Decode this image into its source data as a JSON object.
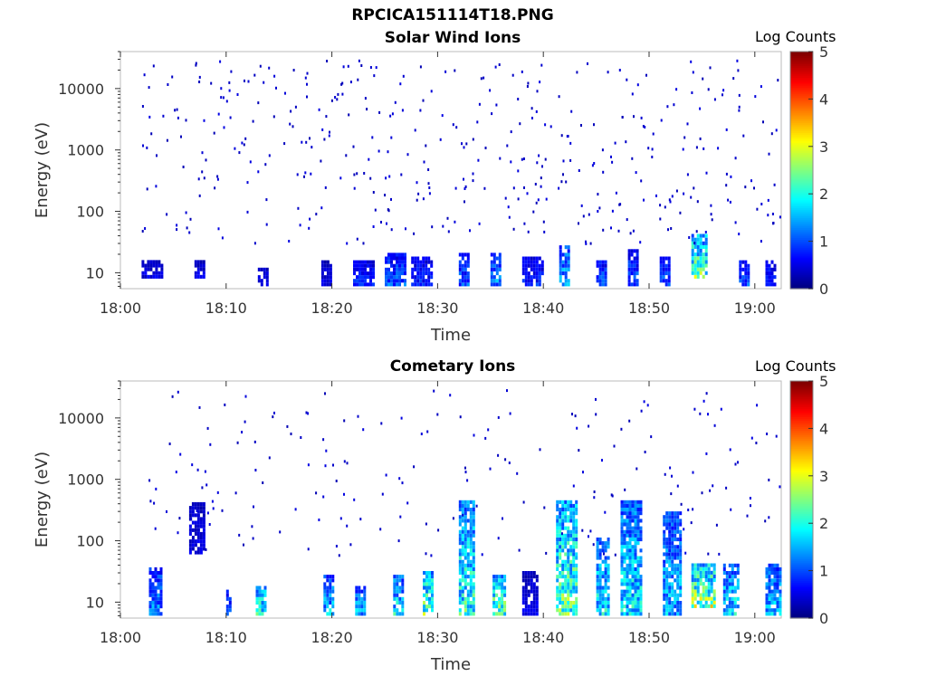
{
  "window": {
    "title": "RPCICA151114T18.PNG"
  },
  "colorbar": {
    "label": "Log Counts",
    "ticks": [
      "0",
      "1",
      "2",
      "3",
      "4",
      "5"
    ],
    "colormap": "jet",
    "range": [
      0,
      5
    ]
  },
  "chart_data": [
    {
      "type": "heatmap",
      "title": "Solar Wind Ions",
      "xlabel": "Time",
      "ylabel": "Energy (eV)",
      "xticks": [
        "18:00",
        "18:10",
        "18:20",
        "18:30",
        "18:40",
        "18:50",
        "19:00"
      ],
      "yticks": [
        "10",
        "100",
        "1000",
        "10000"
      ],
      "yscale": "log",
      "ylim": [
        5.5,
        40000
      ],
      "xlim_minutes": [
        0,
        62.5
      ],
      "colorbar_label": "Log Counts",
      "colorbar_range": [
        0,
        5
      ],
      "regions": [
        {
          "t": [
            2,
            4
          ],
          "e": [
            8,
            15
          ],
          "level": 0.1
        },
        {
          "t": [
            7,
            8
          ],
          "e": [
            8,
            15
          ],
          "level": 0.1
        },
        {
          "t": [
            13,
            14
          ],
          "e": [
            6,
            12
          ],
          "level": 0.1
        },
        {
          "t": [
            19,
            20
          ],
          "e": [
            6,
            15
          ],
          "level": 0.1
        },
        {
          "t": [
            22,
            24
          ],
          "e": [
            6,
            15
          ],
          "level": 0.15
        },
        {
          "t": [
            25,
            27
          ],
          "e": [
            6,
            20
          ],
          "level": 0.2
        },
        {
          "t": [
            27.5,
            29.5
          ],
          "e": [
            6,
            18
          ],
          "level": 0.15
        },
        {
          "t": [
            32,
            33
          ],
          "e": [
            6,
            20
          ],
          "level": 0.2
        },
        {
          "t": [
            35,
            36
          ],
          "e": [
            6,
            20
          ],
          "level": 0.25
        },
        {
          "t": [
            38,
            40
          ],
          "e": [
            6,
            18
          ],
          "level": 0.15
        },
        {
          "t": [
            41.5,
            42.5
          ],
          "e": [
            6,
            25
          ],
          "level": 0.3
        },
        {
          "t": [
            45,
            46
          ],
          "e": [
            6,
            15
          ],
          "level": 0.2
        },
        {
          "t": [
            48,
            49
          ],
          "e": [
            6,
            22
          ],
          "level": 0.2
        },
        {
          "t": [
            51,
            52
          ],
          "e": [
            6,
            18
          ],
          "level": 0.2
        },
        {
          "t": [
            54,
            55.5
          ],
          "e": [
            8,
            40
          ],
          "level": 0.45
        },
        {
          "t": [
            58.5,
            59.5
          ],
          "e": [
            6,
            15
          ],
          "level": 0.2
        },
        {
          "t": [
            61,
            62
          ],
          "e": [
            6,
            15
          ],
          "level": 0.15
        }
      ],
      "scatter": {
        "count": 420,
        "t_range": [
          2,
          62.5
        ],
        "e_range": [
          30,
          30000
        ],
        "level": 0.05
      }
    },
    {
      "type": "heatmap",
      "title": "Cometary Ions",
      "xlabel": "Time",
      "ylabel": "Energy (eV)",
      "xticks": [
        "18:00",
        "18:10",
        "18:20",
        "18:30",
        "18:40",
        "18:50",
        "19:00"
      ],
      "yticks": [
        "10",
        "100",
        "1000",
        "10000"
      ],
      "yscale": "log",
      "ylim": [
        5.5,
        40000
      ],
      "xlim_minutes": [
        0,
        62.5
      ],
      "colorbar_label": "Log Counts",
      "colorbar_range": [
        0,
        5
      ],
      "regions": [
        {
          "t": [
            2.7,
            3.8
          ],
          "e": [
            6,
            35
          ],
          "level": 0.25
        },
        {
          "t": [
            6.5,
            8
          ],
          "e": [
            60,
            400
          ],
          "level": 0.1
        },
        {
          "t": [
            10,
            10.5
          ],
          "e": [
            6,
            15
          ],
          "level": 0.2
        },
        {
          "t": [
            12.8,
            13.8
          ],
          "e": [
            6,
            18
          ],
          "level": 0.4
        },
        {
          "t": [
            19.2,
            20.2
          ],
          "e": [
            6,
            25
          ],
          "level": 0.3
        },
        {
          "t": [
            22.2,
            23
          ],
          "e": [
            6,
            18
          ],
          "level": 0.3
        },
        {
          "t": [
            25.8,
            26.8
          ],
          "e": [
            6,
            25
          ],
          "level": 0.35
        },
        {
          "t": [
            28.6,
            29.6
          ],
          "e": [
            6,
            30
          ],
          "level": 0.45
        },
        {
          "t": [
            32,
            33.3
          ],
          "e": [
            6,
            400
          ],
          "level": 0.4
        },
        {
          "t": [
            35.2,
            36.3
          ],
          "e": [
            6,
            25
          ],
          "level": 0.45
        },
        {
          "t": [
            38,
            39.5
          ],
          "e": [
            6,
            30
          ],
          "level": 0.1
        },
        {
          "t": [
            41.2,
            43
          ],
          "e": [
            6,
            400
          ],
          "level": 0.45
        },
        {
          "t": [
            45,
            46.2
          ],
          "e": [
            6,
            100
          ],
          "level": 0.35
        },
        {
          "t": [
            47.3,
            49.3
          ],
          "e": [
            6,
            400
          ],
          "level": 0.35
        },
        {
          "t": [
            51.3,
            53
          ],
          "e": [
            6,
            300
          ],
          "level": 0.3
        },
        {
          "t": [
            54,
            56.2
          ],
          "e": [
            8,
            40
          ],
          "level": 0.5
        },
        {
          "t": [
            57,
            58.5
          ],
          "e": [
            6,
            40
          ],
          "level": 0.35
        },
        {
          "t": [
            61,
            62.5
          ],
          "e": [
            6,
            40
          ],
          "level": 0.3
        }
      ],
      "scatter": {
        "count": 200,
        "t_range": [
          2,
          62.5
        ],
        "e_range": [
          60,
          30000
        ],
        "level": 0.05
      }
    }
  ]
}
